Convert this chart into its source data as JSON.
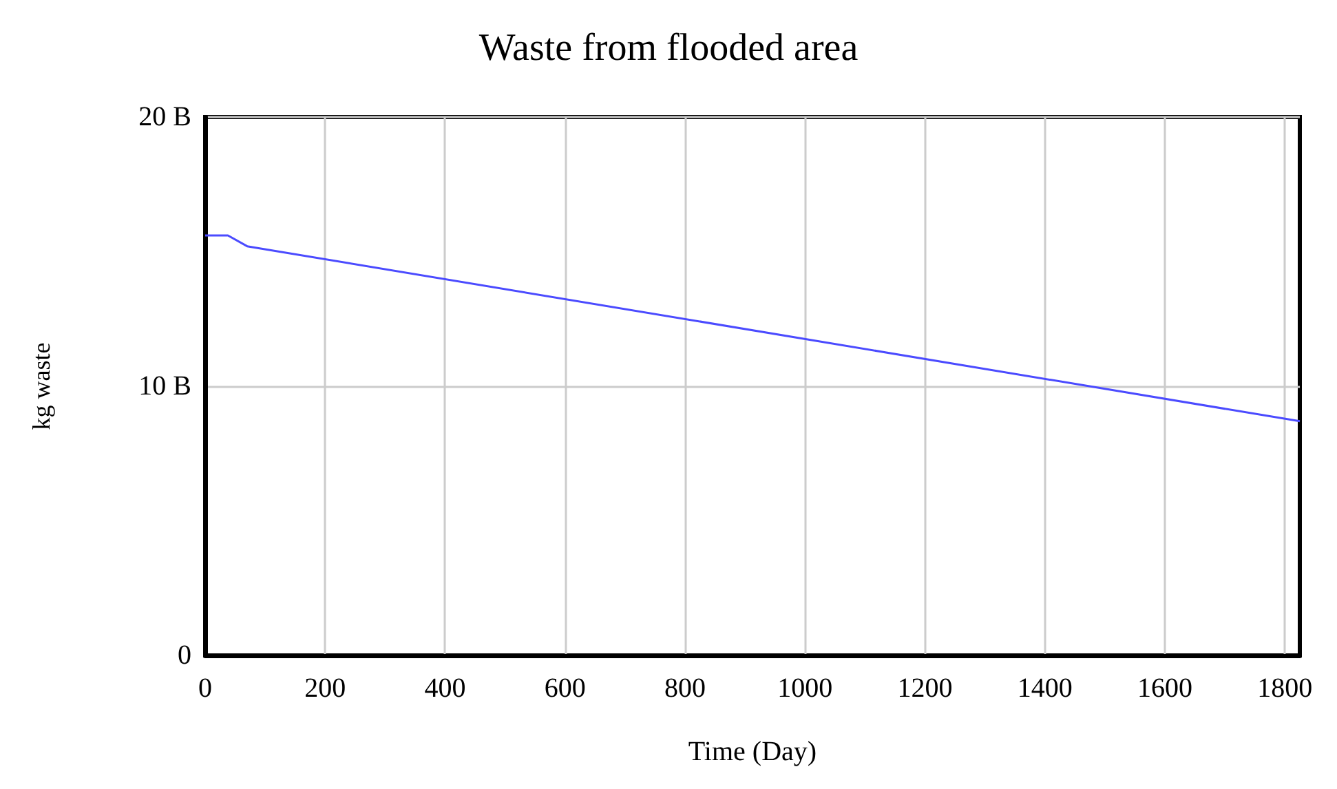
{
  "chart_data": {
    "type": "line",
    "title": "Waste from flooded area",
    "xlabel": "Time (Day)",
    "ylabel": "kg waste",
    "x": [
      0,
      38,
      70,
      1825
    ],
    "series": [
      {
        "color": "#4b4bff",
        "values": [
          15.6,
          15.6,
          15.2,
          8.7
        ]
      }
    ],
    "xlim": [
      0,
      1825
    ],
    "xticks": [
      0,
      200,
      400,
      600,
      800,
      1000,
      1200,
      1400,
      1600,
      1800
    ],
    "ylim": [
      0,
      20
    ],
    "yticks": [
      0,
      {
        "value": 10,
        "label": "10 B"
      },
      {
        "value": 20,
        "label": "20 B"
      }
    ],
    "grid": true,
    "marker": "none",
    "line_style": "solid"
  }
}
